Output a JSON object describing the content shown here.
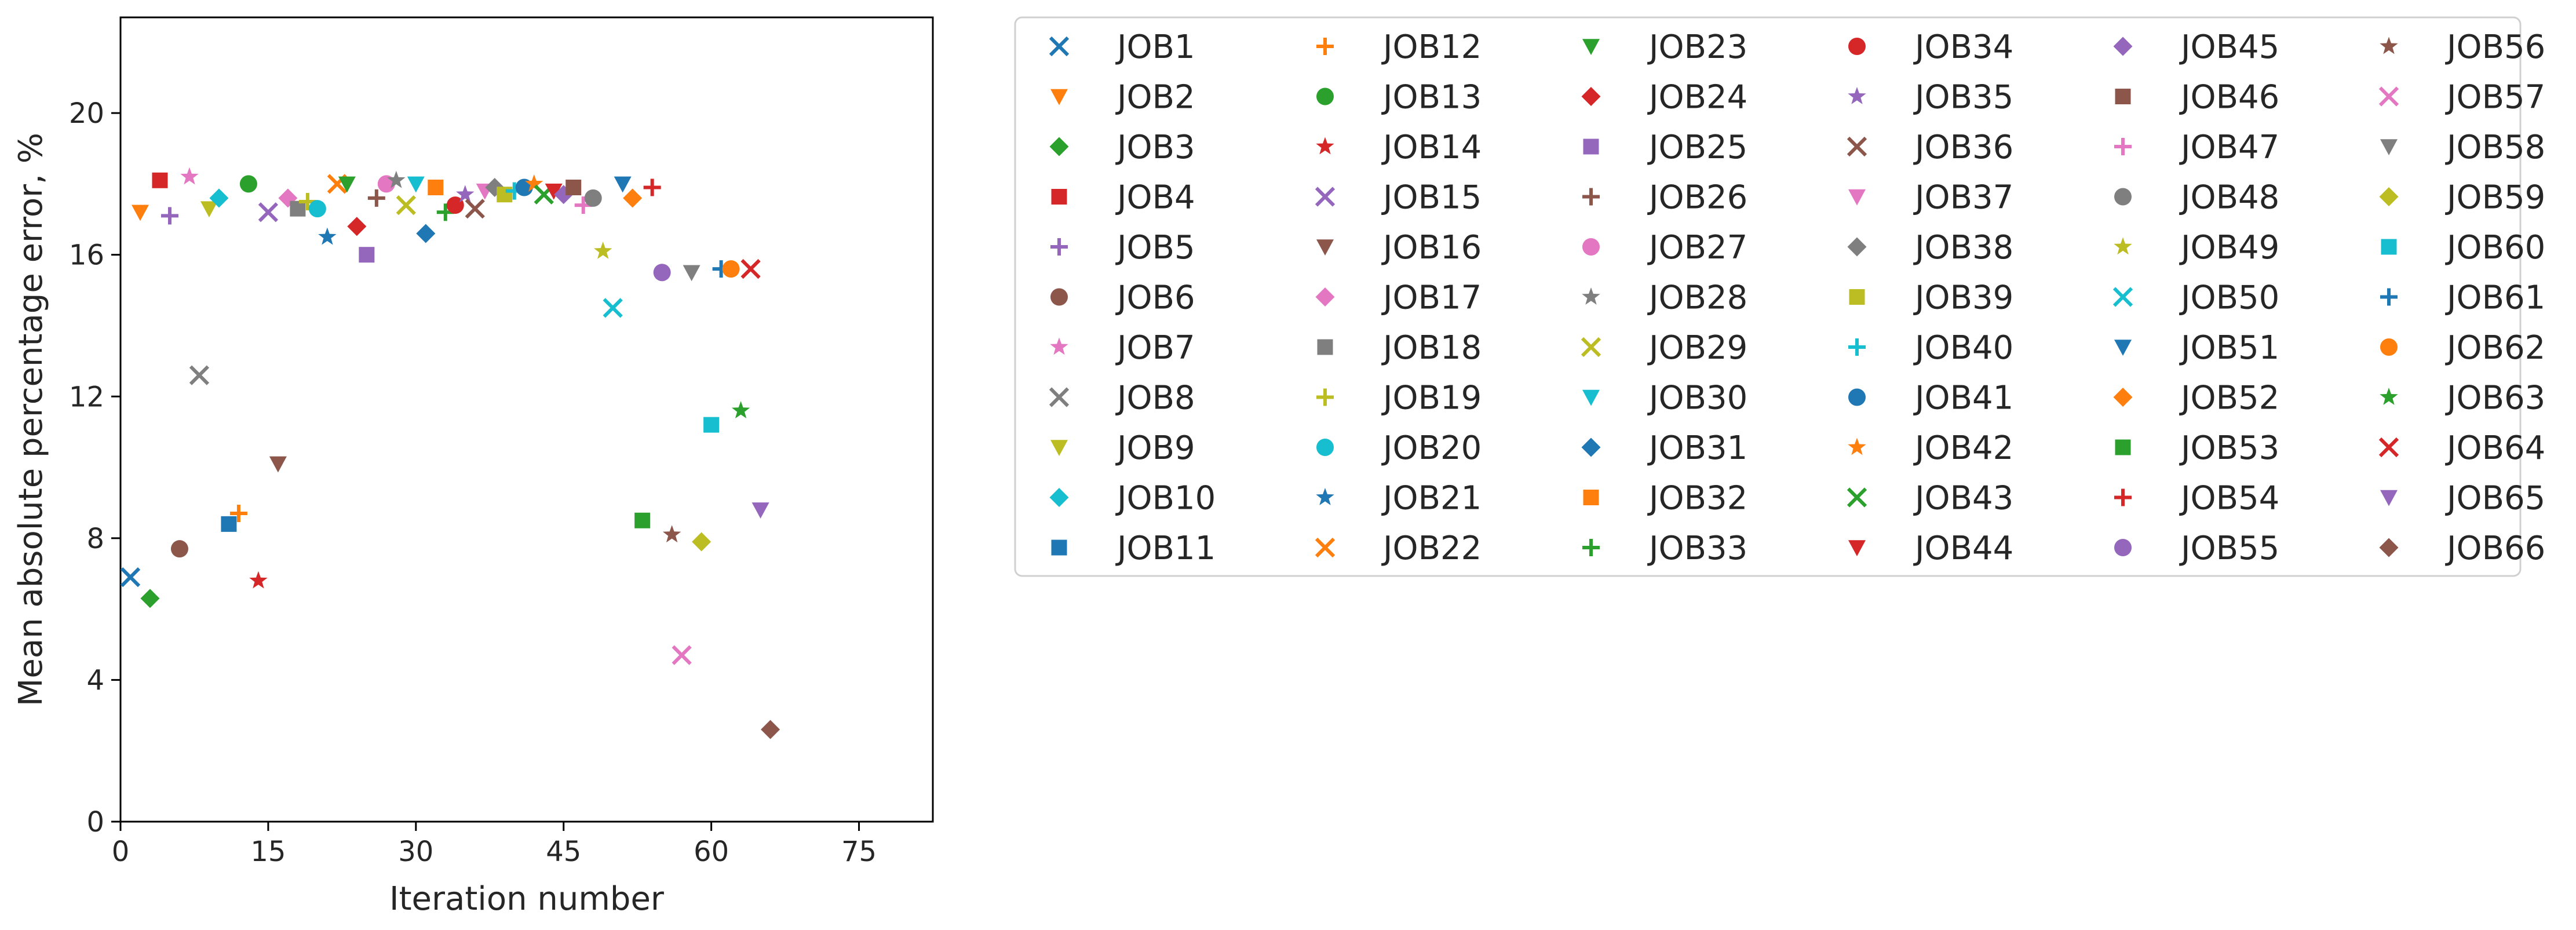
{
  "chart_data": {
    "type": "scatter",
    "title": "",
    "xlabel": "Iteration number",
    "ylabel": "Mean absolute percentage error, %",
    "xlim": [
      0,
      82.5
    ],
    "ylim": [
      0,
      22.7
    ],
    "xticks": [
      0,
      15,
      30,
      45,
      60,
      75
    ],
    "yticks": [
      0,
      4,
      8,
      12,
      16,
      20
    ],
    "grid": false,
    "legend_position": "outside-right",
    "legend_columns": 6,
    "series": [
      {
        "name": "JOB1",
        "x": 1,
        "y": 6.9,
        "color": "#1f77b4",
        "marker": "x"
      },
      {
        "name": "JOB2",
        "x": 2,
        "y": 17.2,
        "color": "#ff7f0e",
        "marker": "v"
      },
      {
        "name": "JOB3",
        "x": 3,
        "y": 6.3,
        "color": "#2ca02c",
        "marker": "D"
      },
      {
        "name": "JOB4",
        "x": 4,
        "y": 18.1,
        "color": "#d62728",
        "marker": "s"
      },
      {
        "name": "JOB5",
        "x": 5,
        "y": 17.1,
        "color": "#9467bd",
        "marker": "+"
      },
      {
        "name": "JOB6",
        "x": 6,
        "y": 7.7,
        "color": "#8c564b",
        "marker": "o"
      },
      {
        "name": "JOB7",
        "x": 7,
        "y": 18.2,
        "color": "#e377c2",
        "marker": "*"
      },
      {
        "name": "JOB8",
        "x": 8,
        "y": 12.6,
        "color": "#7f7f7f",
        "marker": "x"
      },
      {
        "name": "JOB9",
        "x": 9,
        "y": 17.3,
        "color": "#bcbd22",
        "marker": "v"
      },
      {
        "name": "JOB10",
        "x": 10,
        "y": 17.6,
        "color": "#17becf",
        "marker": "D"
      },
      {
        "name": "JOB11",
        "x": 11,
        "y": 8.4,
        "color": "#1f77b4",
        "marker": "s"
      },
      {
        "name": "JOB12",
        "x": 12,
        "y": 8.7,
        "color": "#ff7f0e",
        "marker": "+"
      },
      {
        "name": "JOB13",
        "x": 13,
        "y": 18.0,
        "color": "#2ca02c",
        "marker": "o"
      },
      {
        "name": "JOB14",
        "x": 14,
        "y": 6.8,
        "color": "#d62728",
        "marker": "*"
      },
      {
        "name": "JOB15",
        "x": 15,
        "y": 17.2,
        "color": "#9467bd",
        "marker": "x"
      },
      {
        "name": "JOB16",
        "x": 16,
        "y": 10.1,
        "color": "#8c564b",
        "marker": "v"
      },
      {
        "name": "JOB17",
        "x": 17,
        "y": 17.6,
        "color": "#e377c2",
        "marker": "D"
      },
      {
        "name": "JOB18",
        "x": 18,
        "y": 17.3,
        "color": "#7f7f7f",
        "marker": "s"
      },
      {
        "name": "JOB19",
        "x": 19,
        "y": 17.5,
        "color": "#bcbd22",
        "marker": "+"
      },
      {
        "name": "JOB20",
        "x": 20,
        "y": 17.3,
        "color": "#17becf",
        "marker": "o"
      },
      {
        "name": "JOB21",
        "x": 21,
        "y": 16.5,
        "color": "#1f77b4",
        "marker": "*"
      },
      {
        "name": "JOB22",
        "x": 22,
        "y": 18.0,
        "color": "#ff7f0e",
        "marker": "x"
      },
      {
        "name": "JOB23",
        "x": 23,
        "y": 18.0,
        "color": "#2ca02c",
        "marker": "v"
      },
      {
        "name": "JOB24",
        "x": 24,
        "y": 16.8,
        "color": "#d62728",
        "marker": "D"
      },
      {
        "name": "JOB25",
        "x": 25,
        "y": 16.0,
        "color": "#9467bd",
        "marker": "s"
      },
      {
        "name": "JOB26",
        "x": 26,
        "y": 17.6,
        "color": "#8c564b",
        "marker": "+"
      },
      {
        "name": "JOB27",
        "x": 27,
        "y": 18.0,
        "color": "#e377c2",
        "marker": "o"
      },
      {
        "name": "JOB28",
        "x": 28,
        "y": 18.1,
        "color": "#7f7f7f",
        "marker": "*"
      },
      {
        "name": "JOB29",
        "x": 29,
        "y": 17.4,
        "color": "#bcbd22",
        "marker": "x"
      },
      {
        "name": "JOB30",
        "x": 30,
        "y": 18.0,
        "color": "#17becf",
        "marker": "v"
      },
      {
        "name": "JOB31",
        "x": 31,
        "y": 16.6,
        "color": "#1f77b4",
        "marker": "D"
      },
      {
        "name": "JOB32",
        "x": 32,
        "y": 17.9,
        "color": "#ff7f0e",
        "marker": "s"
      },
      {
        "name": "JOB33",
        "x": 33,
        "y": 17.2,
        "color": "#2ca02c",
        "marker": "+"
      },
      {
        "name": "JOB34",
        "x": 34,
        "y": 17.4,
        "color": "#d62728",
        "marker": "o"
      },
      {
        "name": "JOB35",
        "x": 35,
        "y": 17.7,
        "color": "#9467bd",
        "marker": "*"
      },
      {
        "name": "JOB36",
        "x": 36,
        "y": 17.3,
        "color": "#8c564b",
        "marker": "x"
      },
      {
        "name": "JOB37",
        "x": 37,
        "y": 17.8,
        "color": "#e377c2",
        "marker": "v"
      },
      {
        "name": "JOB38",
        "x": 38,
        "y": 17.9,
        "color": "#7f7f7f",
        "marker": "D"
      },
      {
        "name": "JOB39",
        "x": 39,
        "y": 17.7,
        "color": "#bcbd22",
        "marker": "s"
      },
      {
        "name": "JOB40",
        "x": 40,
        "y": 17.8,
        "color": "#17becf",
        "marker": "+"
      },
      {
        "name": "JOB41",
        "x": 41,
        "y": 17.9,
        "color": "#1f77b4",
        "marker": "o"
      },
      {
        "name": "JOB42",
        "x": 42,
        "y": 18.0,
        "color": "#ff7f0e",
        "marker": "*"
      },
      {
        "name": "JOB43",
        "x": 43,
        "y": 17.7,
        "color": "#2ca02c",
        "marker": "x"
      },
      {
        "name": "JOB44",
        "x": 44,
        "y": 17.8,
        "color": "#d62728",
        "marker": "v"
      },
      {
        "name": "JOB45",
        "x": 45,
        "y": 17.7,
        "color": "#9467bd",
        "marker": "D"
      },
      {
        "name": "JOB46",
        "x": 46,
        "y": 17.9,
        "color": "#8c564b",
        "marker": "s"
      },
      {
        "name": "JOB47",
        "x": 47,
        "y": 17.4,
        "color": "#e377c2",
        "marker": "+"
      },
      {
        "name": "JOB48",
        "x": 48,
        "y": 17.6,
        "color": "#7f7f7f",
        "marker": "o"
      },
      {
        "name": "JOB49",
        "x": 49,
        "y": 16.1,
        "color": "#bcbd22",
        "marker": "*"
      },
      {
        "name": "JOB50",
        "x": 50,
        "y": 14.5,
        "color": "#17becf",
        "marker": "x"
      },
      {
        "name": "JOB51",
        "x": 51,
        "y": 18.0,
        "color": "#1f77b4",
        "marker": "v"
      },
      {
        "name": "JOB52",
        "x": 52,
        "y": 17.6,
        "color": "#ff7f0e",
        "marker": "D"
      },
      {
        "name": "JOB53",
        "x": 53,
        "y": 8.5,
        "color": "#2ca02c",
        "marker": "s"
      },
      {
        "name": "JOB54",
        "x": 54,
        "y": 17.9,
        "color": "#d62728",
        "marker": "+"
      },
      {
        "name": "JOB55",
        "x": 55,
        "y": 15.5,
        "color": "#9467bd",
        "marker": "o"
      },
      {
        "name": "JOB56",
        "x": 56,
        "y": 8.1,
        "color": "#8c564b",
        "marker": "*"
      },
      {
        "name": "JOB57",
        "x": 57,
        "y": 4.7,
        "color": "#e377c2",
        "marker": "x"
      },
      {
        "name": "JOB58",
        "x": 58,
        "y": 15.5,
        "color": "#7f7f7f",
        "marker": "v"
      },
      {
        "name": "JOB59",
        "x": 59,
        "y": 7.9,
        "color": "#bcbd22",
        "marker": "D"
      },
      {
        "name": "JOB60",
        "x": 60,
        "y": 11.2,
        "color": "#17becf",
        "marker": "s"
      },
      {
        "name": "JOB61",
        "x": 61,
        "y": 15.6,
        "color": "#1f77b4",
        "marker": "+"
      },
      {
        "name": "JOB62",
        "x": 62,
        "y": 15.6,
        "color": "#ff7f0e",
        "marker": "o"
      },
      {
        "name": "JOB63",
        "x": 63,
        "y": 11.6,
        "color": "#2ca02c",
        "marker": "*"
      },
      {
        "name": "JOB64",
        "x": 64,
        "y": 15.6,
        "color": "#d62728",
        "marker": "x"
      },
      {
        "name": "JOB65",
        "x": 65,
        "y": 8.8,
        "color": "#9467bd",
        "marker": "v"
      },
      {
        "name": "JOB66",
        "x": 66,
        "y": 2.6,
        "color": "#8c564b",
        "marker": "D"
      }
    ]
  }
}
